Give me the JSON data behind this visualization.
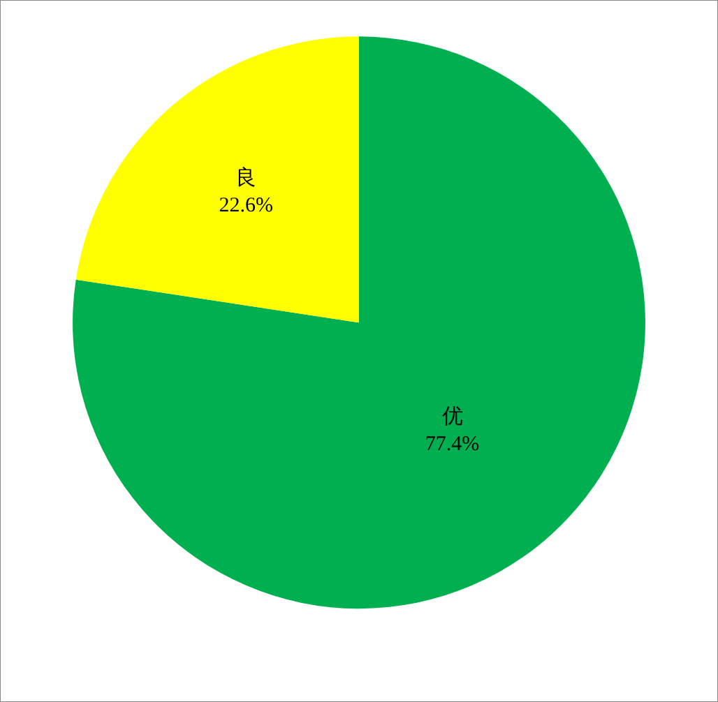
{
  "chart_data": {
    "type": "pie",
    "categories": [
      "优",
      "良"
    ],
    "values": [
      77.4,
      22.6
    ],
    "colors": [
      "#00b050",
      "#ffff00"
    ],
    "value_labels": [
      "77.4%",
      "22.6%"
    ],
    "legend": false
  }
}
